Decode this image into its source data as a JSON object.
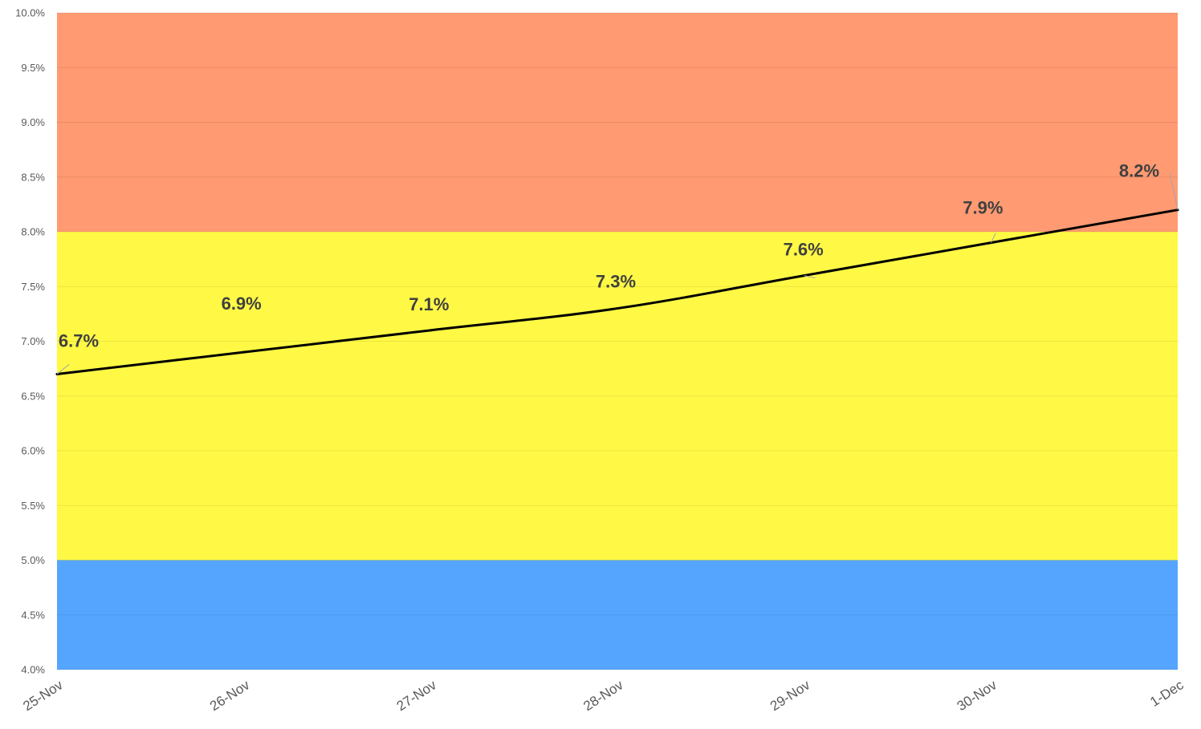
{
  "chart_data": {
    "type": "line",
    "title": "",
    "xlabel": "",
    "ylabel": "",
    "categories": [
      "25-Nov",
      "26-Nov",
      "27-Nov",
      "28-Nov",
      "29-Nov",
      "30-Nov",
      "1-Dec"
    ],
    "series": [
      {
        "values": [
          6.7,
          6.9,
          7.1,
          7.3,
          7.6,
          7.9,
          8.2
        ],
        "color": "#000000"
      }
    ],
    "data_labels": [
      "6.7%",
      "6.9%",
      "7.1%",
      "7.3%",
      "7.6%",
      "7.9%",
      "8.2%"
    ],
    "ylim": [
      4.0,
      10.0
    ],
    "yticks": [
      4.0,
      4.5,
      5.0,
      5.5,
      6.0,
      6.5,
      7.0,
      7.5,
      8.0,
      8.5,
      9.0,
      9.5,
      10.0
    ],
    "ytick_labels": [
      "4.0%",
      "4.5%",
      "5.0%",
      "5.5%",
      "6.0%",
      "6.5%",
      "7.0%",
      "7.5%",
      "8.0%",
      "8.5%",
      "9.0%",
      "9.5%",
      "10.0%"
    ],
    "bands": [
      {
        "from": 4.0,
        "to": 5.0,
        "color": "#55A5FF"
      },
      {
        "from": 5.0,
        "to": 8.0,
        "color": "#FFF945"
      },
      {
        "from": 8.0,
        "to": 10.0,
        "color": "#FF9A72"
      }
    ],
    "grid": true,
    "legend": "none"
  }
}
